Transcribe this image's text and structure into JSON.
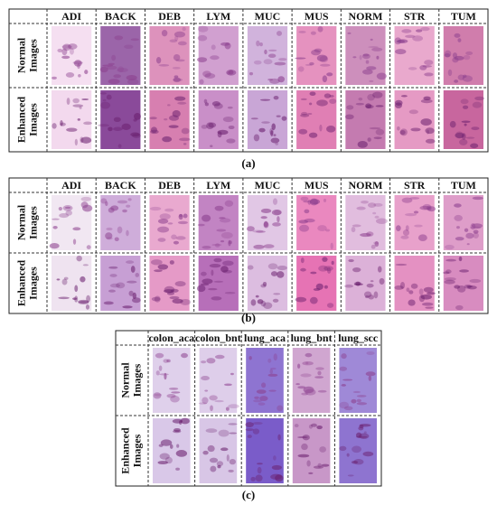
{
  "panels": [
    {
      "columns": [
        "ADI",
        "BACK",
        "DEB",
        "LYM",
        "MUC",
        "MUS",
        "NORM",
        "STR",
        "TUM"
      ],
      "rows": [
        [
          "Normal",
          "Images"
        ],
        [
          "Enhanced",
          "Images"
        ]
      ],
      "caption": "(a)"
    },
    {
      "columns": [
        "ADI",
        "BACK",
        "DEB",
        "LYM",
        "MUC",
        "MUS",
        "NORM",
        "STR",
        "TUM"
      ],
      "rows": [
        [
          "Normal",
          "Images"
        ],
        [
          "Enhanced",
          "Images"
        ]
      ],
      "caption": "(b)"
    },
    {
      "columns": [
        "colon_aca",
        "colon_bnt",
        "lung_aca",
        "lung_bnt",
        "lung_scc"
      ],
      "rows": [
        [
          "Normal",
          "Images"
        ],
        [
          "Enhanced",
          "Images"
        ]
      ],
      "caption": "(c)"
    }
  ]
}
